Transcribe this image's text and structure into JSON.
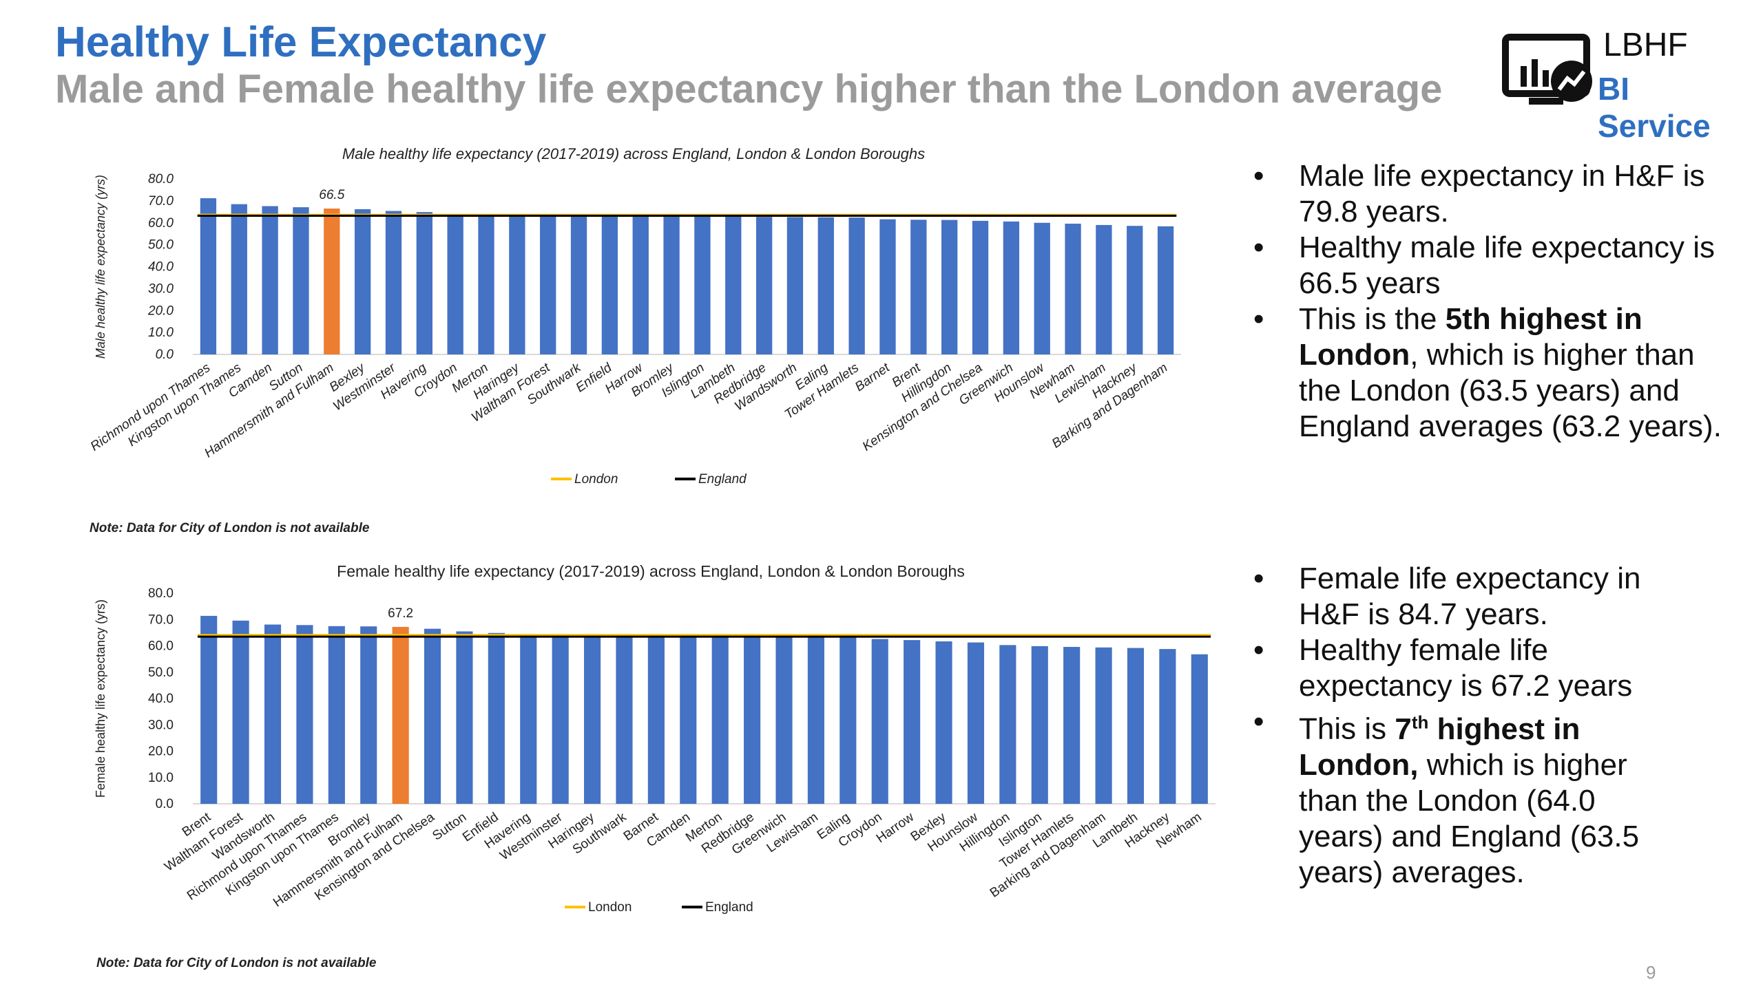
{
  "header": {
    "title": "Healthy Life Expectancy",
    "subtitle": "Male and Female healthy life expectancy higher than the London average"
  },
  "logo": {
    "top_text": "LBHF",
    "bottom_text": "BI Service",
    "icon": "monitor-chart-icon",
    "accent_color": "#2f6fc0"
  },
  "colors": {
    "bar": "#4472c4",
    "highlight_bar": "#ed7d31",
    "london_line": "#ffc000",
    "england_line": "#000000"
  },
  "chart_data": [
    {
      "type": "bar",
      "title": "Male healthy life expectancy (2017-2019) across England, London & London Boroughs",
      "ylabel": "Male healthy life expectancy (yrs)",
      "ylim": [
        0,
        80
      ],
      "yticks": [
        "0.0",
        "10.0",
        "20.0",
        "30.0",
        "40.0",
        "50.0",
        "60.0",
        "70.0",
        "80.0"
      ],
      "categories": [
        "Richmond upon Thames",
        "Kingston upon Thames",
        "Camden",
        "Sutton",
        "Hammersmith and Fulham",
        "Bexley",
        "Westminster",
        "Havering",
        "Croydon",
        "Merton",
        "Haringey",
        "Waltham Forest",
        "Southwark",
        "Enfield",
        "Harrow",
        "Bromley",
        "Islington",
        "Lambeth",
        "Redbridge",
        "Wandsworth",
        "Ealing",
        "Tower Hamlets",
        "Barnet",
        "Brent",
        "Hillingdon",
        "Kensington and Chelsea",
        "Greenwich",
        "Hounslow",
        "Newham",
        "Lewisham",
        "Hackney",
        "Barking and Dagenham"
      ],
      "values": [
        71.2,
        68.5,
        67.6,
        67.1,
        66.5,
        66.2,
        65.4,
        64.9,
        63.8,
        63.6,
        63.4,
        63.4,
        63.3,
        63.2,
        63.2,
        63.1,
        63.0,
        62.8,
        62.7,
        62.6,
        62.5,
        62.4,
        61.6,
        61.4,
        61.3,
        60.9,
        60.6,
        60.0,
        59.6,
        59.0,
        58.6,
        58.4
      ],
      "highlight_index": 4,
      "data_label": "66.5",
      "series": [
        {
          "name": "London",
          "value": 63.5
        },
        {
          "name": "England",
          "value": 63.2
        }
      ],
      "legend_position": "bottom",
      "note": "Note: Data for City of London is not available"
    },
    {
      "type": "bar",
      "title": "Female healthy life expectancy (2017-2019) across England, London & London Boroughs",
      "ylabel": "Female healthy life expectancy (yrs)",
      "ylim": [
        0,
        80
      ],
      "yticks": [
        "0.0",
        "10.0",
        "20.0",
        "30.0",
        "40.0",
        "50.0",
        "60.0",
        "70.0",
        "80.0"
      ],
      "categories": [
        "Brent",
        "Waltham Forest",
        "Wandsworth",
        "Richmond upon Thames",
        "Kingston upon Thames",
        "Bromley",
        "Hammersmith and Fulham",
        "Kensington and Chelsea",
        "Sutton",
        "Enfield",
        "Havering",
        "Westminster",
        "Haringey",
        "Southwark",
        "Barnet",
        "Camden",
        "Merton",
        "Redbridge",
        "Greenwich",
        "Lewisham",
        "Ealing",
        "Croydon",
        "Harrow",
        "Bexley",
        "Hounslow",
        "Hillingdon",
        "Islington",
        "Tower Hamlets",
        "Barking and Dagenham",
        "Lambeth",
        "Hackney",
        "Newham"
      ],
      "values": [
        71.4,
        69.6,
        68.1,
        67.9,
        67.5,
        67.4,
        67.2,
        66.5,
        65.5,
        64.9,
        64.0,
        63.9,
        63.8,
        63.7,
        63.6,
        63.5,
        63.5,
        63.4,
        63.4,
        63.3,
        63.2,
        62.6,
        62.2,
        61.7,
        61.3,
        60.3,
        59.9,
        59.6,
        59.4,
        59.2,
        58.8,
        56.8
      ],
      "highlight_index": 6,
      "data_label": "67.2",
      "series": [
        {
          "name": "London",
          "value": 64.0
        },
        {
          "name": "England",
          "value": 63.5
        }
      ],
      "legend_position": "bottom",
      "note": "Note: Data for City of London is not available"
    }
  ],
  "male_text": {
    "b1": "Male life expectancy in H&F is 79.8 years.",
    "b2": "Healthy male life expectancy is 66.5 years",
    "b3_pre": "This is the ",
    "b3_bold": "5th highest in London",
    "b3_post": ", which is higher than the London (63.5 years) and England averages (63.2 years)."
  },
  "female_text": {
    "b1": "Female life expectancy in H&F is 84.7 years.",
    "b2": "Healthy female life expectancy is 67.2 years",
    "b3_pre": "This is ",
    "b3_num": "7",
    "b3_sup": "th",
    "b3_bold": " highest in London,",
    "b3_post": " which is higher than the London (64.0 years) and England (63.5 years) averages."
  },
  "page_number": "9"
}
